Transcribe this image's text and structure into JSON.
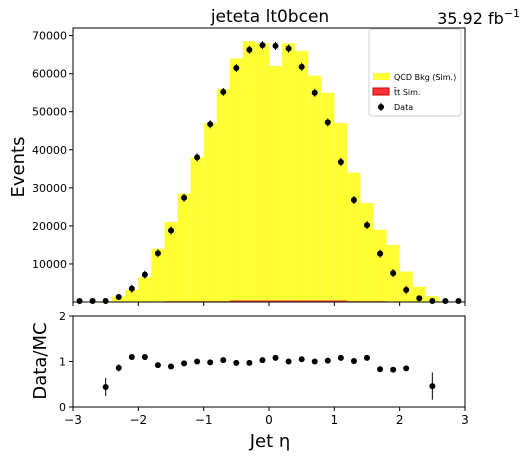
{
  "chart_data": [
    {
      "type": "bar",
      "title": "jeteta  lt0bcen",
      "lumi_label": "35.92 fb",
      "lumi_exponent": "−1",
      "ylabel": "Events",
      "xlim": [
        -3,
        3
      ],
      "ylim": [
        0,
        72000
      ],
      "yticks": [
        10000,
        20000,
        30000,
        40000,
        50000,
        60000,
        70000
      ],
      "ytick_labels": [
        "10000",
        "20000",
        "30000",
        "40000",
        "50000",
        "60000",
        "70000"
      ],
      "grid": false,
      "legend_placement": "top-right",
      "bin_edges": [
        -3.0,
        -2.8,
        -2.6,
        -2.4,
        -2.2,
        -2.0,
        -1.8,
        -1.6,
        -1.4,
        -1.2,
        -1.0,
        -0.8,
        -0.6,
        -0.4,
        -0.2,
        0.0,
        0.2,
        0.4,
        0.6,
        0.8,
        1.0,
        1.2,
        1.4,
        1.6,
        1.8,
        2.0,
        2.2,
        2.4,
        2.6,
        2.8,
        3.0
      ],
      "series": [
        {
          "name": "QCD Bkg (Sim.)",
          "kind": "stacked-histogram",
          "color": "#ffff33",
          "values": [
            0,
            0,
            200,
            1500,
            3200,
            6500,
            14000,
            21000,
            28500,
            38000,
            47000,
            56000,
            64000,
            68500,
            68000,
            62000,
            68000,
            66000,
            59500,
            55000,
            47000,
            34000,
            26000,
            19000,
            15000,
            8000,
            4000,
            1500,
            100,
            0
          ]
        },
        {
          "name": "t̄t Sim.",
          "kind": "stacked-histogram",
          "color": "#ff3333",
          "values": [
            0,
            0,
            0,
            0,
            0,
            0,
            0,
            200,
            200,
            200,
            200,
            200,
            400,
            400,
            400,
            400,
            400,
            400,
            400,
            400,
            400,
            200,
            200,
            200,
            0,
            0,
            0,
            0,
            0,
            0
          ]
        },
        {
          "name": "Data",
          "kind": "points",
          "color": "#000000",
          "x": [
            -2.9,
            -2.7,
            -2.5,
            -2.3,
            -2.1,
            -1.9,
            -1.7,
            -1.5,
            -1.3,
            -1.1,
            -0.9,
            -0.7,
            -0.5,
            -0.3,
            -0.1,
            0.1,
            0.3,
            0.5,
            0.7,
            0.9,
            1.1,
            1.3,
            1.5,
            1.7,
            1.9,
            2.1,
            2.3,
            2.5,
            2.7,
            2.9
          ],
          "y": [
            0,
            0,
            100,
            1300,
            3500,
            7200,
            12800,
            18800,
            27400,
            38000,
            46700,
            55200,
            61500,
            66300,
            67500,
            67300,
            66600,
            61800,
            55000,
            47200,
            36800,
            26800,
            20200,
            12700,
            7600,
            3200,
            1000,
            100,
            0,
            0
          ]
        }
      ]
    },
    {
      "type": "scatter",
      "ylabel": "Data/MC",
      "xlabel": "Jet η",
      "xlim": [
        -3,
        3
      ],
      "ylim": [
        0,
        2
      ],
      "xticks": [
        -3,
        -2,
        -1,
        0,
        1,
        2,
        3
      ],
      "xtick_labels": [
        "−3",
        "−2",
        "−1",
        "0",
        "1",
        "2",
        "3"
      ],
      "yticks": [
        0,
        1,
        2
      ],
      "ytick_labels": [
        "0",
        "1",
        "2"
      ],
      "grid": false,
      "series": [
        {
          "x": [
            -2.5,
            -2.3,
            -2.1,
            -1.9,
            -1.7,
            -1.5,
            -1.3,
            -1.1,
            -0.9,
            -0.7,
            -0.5,
            -0.3,
            -0.1,
            0.1,
            0.3,
            0.5,
            0.7,
            0.9,
            1.1,
            1.3,
            1.5,
            1.7,
            1.9,
            2.1,
            2.3,
            2.5
          ],
          "y": [
            0.44,
            0.86,
            1.1,
            1.1,
            0.92,
            0.89,
            0.96,
            1.0,
            0.98,
            1.03,
            0.97,
            0.97,
            1.03,
            1.08,
            1.0,
            1.05,
            1.0,
            1.02,
            1.08,
            1.01,
            1.08,
            0.83,
            0.82,
            0.85,
            null,
            0.46
          ],
          "yerr": [
            0.2,
            0.08,
            0.05,
            0.03,
            0.02,
            0.02,
            0.02,
            0.02,
            0.02,
            0.02,
            0.02,
            0.02,
            0.02,
            0.02,
            0.02,
            0.02,
            0.02,
            0.02,
            0.02,
            0.02,
            0.02,
            0.03,
            0.04,
            0.05,
            0,
            0.3
          ]
        }
      ]
    }
  ]
}
